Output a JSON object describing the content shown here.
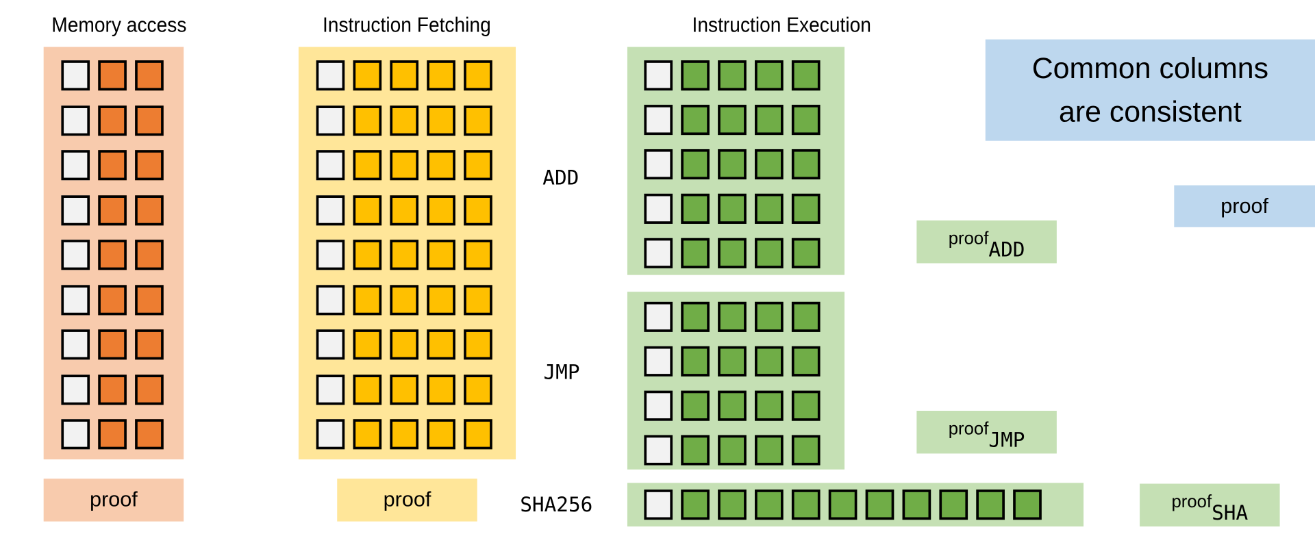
{
  "colors": {
    "memory_bg": "#f8cbad",
    "memory_cell": "#ed7d31",
    "fetch_bg": "#ffe699",
    "fetch_cell": "#ffc000",
    "exec_bg": "#c5e0b4",
    "exec_cell": "#70ad47",
    "common_bg": "#bdd7ee",
    "first_cell": "#f2f2f2"
  },
  "memory": {
    "title": "Memory access",
    "rows": 9,
    "columns": 3,
    "proof": "proof"
  },
  "fetch": {
    "title": "Instruction Fetching",
    "rows": 9,
    "columns": 5,
    "proof": "proof"
  },
  "execution": {
    "title": "Instruction Execution",
    "tables": [
      {
        "label": "ADD",
        "rows": 5,
        "columns": 5,
        "proof": "proof",
        "proof_sub": "ADD"
      },
      {
        "label": "JMP",
        "rows": 4,
        "columns": 5,
        "proof": "proof",
        "proof_sub": "JMP"
      },
      {
        "label": "SHA256",
        "rows": 1,
        "columns": 11,
        "proof": "proof",
        "proof_sub": "SHA"
      }
    ]
  },
  "common": {
    "line1": "Common columns",
    "line2": "are consistent",
    "proof": "proof"
  }
}
